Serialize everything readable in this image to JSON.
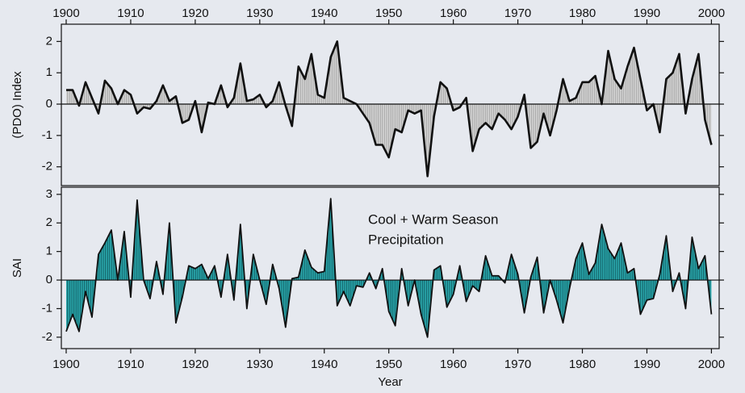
{
  "chart_data": [
    {
      "type": "area",
      "ylabel": "(PDO) Index",
      "x": [
        1900,
        1901,
        1902,
        1903,
        1904,
        1905,
        1906,
        1907,
        1908,
        1909,
        1910,
        1911,
        1912,
        1913,
        1914,
        1915,
        1916,
        1917,
        1918,
        1919,
        1920,
        1921,
        1922,
        1923,
        1924,
        1925,
        1926,
        1927,
        1928,
        1929,
        1930,
        1931,
        1932,
        1933,
        1934,
        1935,
        1936,
        1937,
        1938,
        1939,
        1940,
        1941,
        1942,
        1943,
        1944,
        1945,
        1946,
        1947,
        1948,
        1949,
        1950,
        1951,
        1952,
        1953,
        1954,
        1955,
        1956,
        1957,
        1958,
        1959,
        1960,
        1961,
        1962,
        1963,
        1964,
        1965,
        1966,
        1967,
        1968,
        1969,
        1970,
        1971,
        1972,
        1973,
        1974,
        1975,
        1976,
        1977,
        1978,
        1979,
        1980,
        1981,
        1982,
        1983,
        1984,
        1985,
        1986,
        1987,
        1988,
        1989,
        1990,
        1991,
        1992,
        1993,
        1994,
        1995,
        1996,
        1997,
        1998,
        1999,
        2000
      ],
      "values": [
        0.45,
        0.45,
        -0.05,
        0.7,
        0.2,
        -0.3,
        0.75,
        0.5,
        0.0,
        0.45,
        0.3,
        -0.3,
        -0.1,
        -0.15,
        0.1,
        0.6,
        0.1,
        0.25,
        -0.6,
        -0.5,
        0.1,
        -0.9,
        0.05,
        0.0,
        0.6,
        -0.1,
        0.2,
        1.3,
        0.1,
        0.15,
        0.3,
        -0.1,
        0.1,
        0.7,
        -0.05,
        -0.7,
        1.2,
        0.8,
        1.6,
        0.3,
        0.2,
        1.5,
        2.0,
        0.2,
        0.1,
        0.0,
        -0.3,
        -0.6,
        -1.3,
        -1.3,
        -1.7,
        -0.8,
        -0.9,
        -0.2,
        -0.3,
        -0.2,
        -2.3,
        -0.4,
        0.7,
        0.5,
        -0.2,
        -0.1,
        0.2,
        -1.5,
        -0.8,
        -0.6,
        -0.8,
        -0.3,
        -0.5,
        -0.8,
        -0.4,
        0.3,
        -1.4,
        -1.2,
        -0.3,
        -1.0,
        -0.2,
        0.8,
        0.1,
        0.2,
        0.7,
        0.7,
        0.9,
        0.0,
        1.7,
        0.8,
        0.5,
        1.2,
        1.8,
        0.8,
        -0.2,
        0.0,
        -0.9,
        0.8,
        1.0,
        1.6,
        -0.3,
        0.8,
        1.6,
        -0.5,
        -1.3
      ],
      "fill_color": "#d4d4d4",
      "hatch_color": "#9a9a9a",
      "line_color": "#111111",
      "xlim": [
        1899.25,
        2001.2
      ],
      "xticks": [
        1900,
        1910,
        1920,
        1930,
        1940,
        1950,
        1960,
        1970,
        1980,
        1990,
        2000
      ],
      "ylim": [
        -2.6,
        2.55
      ],
      "yticks": [
        -2,
        -1,
        0,
        1,
        2
      ]
    },
    {
      "type": "area",
      "ylabel": "SAI",
      "xlabel": "Year",
      "annotation": [
        "Cool + Warm Season",
        "Precipitation"
      ],
      "x": [
        1900,
        1901,
        1902,
        1903,
        1904,
        1905,
        1906,
        1907,
        1908,
        1909,
        1910,
        1911,
        1912,
        1913,
        1914,
        1915,
        1916,
        1917,
        1918,
        1919,
        1920,
        1921,
        1922,
        1923,
        1924,
        1925,
        1926,
        1927,
        1928,
        1929,
        1930,
        1931,
        1932,
        1933,
        1934,
        1935,
        1936,
        1937,
        1938,
        1939,
        1940,
        1941,
        1942,
        1943,
        1944,
        1945,
        1946,
        1947,
        1948,
        1949,
        1950,
        1951,
        1952,
        1953,
        1954,
        1955,
        1956,
        1957,
        1958,
        1959,
        1960,
        1961,
        1962,
        1963,
        1964,
        1965,
        1966,
        1967,
        1968,
        1969,
        1970,
        1971,
        1972,
        1973,
        1974,
        1975,
        1976,
        1977,
        1978,
        1979,
        1980,
        1981,
        1982,
        1983,
        1984,
        1985,
        1986,
        1987,
        1988,
        1989,
        1990,
        1991,
        1992,
        1993,
        1994,
        1995,
        1996,
        1997,
        1998,
        1999,
        2000
      ],
      "values": [
        -1.8,
        -1.2,
        -1.8,
        -0.4,
        -1.3,
        0.9,
        1.3,
        1.75,
        0.0,
        1.7,
        -0.6,
        2.8,
        0.0,
        -0.65,
        0.65,
        -0.5,
        2.0,
        -1.5,
        -0.6,
        0.5,
        0.4,
        0.55,
        0.05,
        0.5,
        -0.6,
        0.9,
        -0.7,
        1.95,
        -1.0,
        0.9,
        0.0,
        -0.85,
        0.55,
        -0.3,
        -1.65,
        0.05,
        0.1,
        1.05,
        0.45,
        0.25,
        0.3,
        2.85,
        -0.9,
        -0.4,
        -0.9,
        -0.2,
        -0.25,
        0.25,
        -0.3,
        0.4,
        -1.1,
        -1.6,
        0.4,
        -0.9,
        0.0,
        -1.2,
        -2.0,
        0.35,
        0.5,
        -0.95,
        -0.5,
        0.5,
        -0.75,
        -0.2,
        -0.4,
        0.85,
        0.15,
        0.15,
        -0.1,
        0.9,
        0.2,
        -1.15,
        0.1,
        0.8,
        -1.15,
        0.0,
        -0.7,
        -1.5,
        -0.3,
        0.75,
        1.3,
        0.2,
        0.6,
        1.95,
        1.1,
        0.75,
        1.3,
        0.25,
        0.4,
        -1.2,
        -0.7,
        -0.65,
        0.2,
        1.55,
        -0.4,
        0.25,
        -1.0,
        1.5,
        0.4,
        0.85,
        -1.2
      ],
      "fill_color": "#2aa8ad",
      "hatch_color": "#0d4d52",
      "line_color": "#111111",
      "xlim": [
        1899.25,
        2001.2
      ],
      "xticks": [
        1900,
        1910,
        1920,
        1930,
        1940,
        1950,
        1960,
        1970,
        1980,
        1990,
        2000
      ],
      "ylim": [
        -2.4,
        3.25
      ],
      "yticks": [
        -2,
        -1,
        0,
        1,
        2,
        3
      ]
    }
  ]
}
